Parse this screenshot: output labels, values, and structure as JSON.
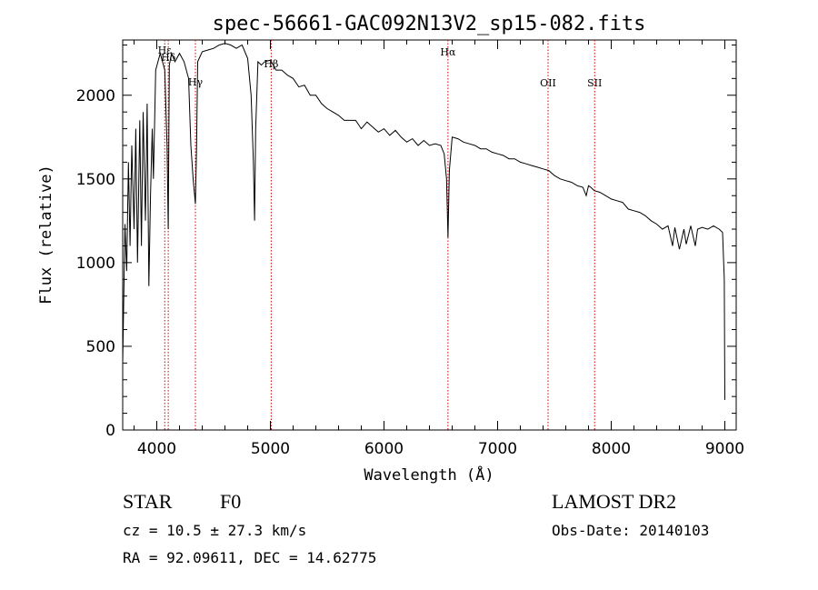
{
  "chart_data": {
    "type": "line",
    "title": "spec-56661-GAC092N13V2_sp15-082.fits",
    "xlabel": "Wavelength (Å)",
    "ylabel": "Flux (relative)",
    "xlim": [
      3700,
      9100
    ],
    "ylim": [
      0,
      2330
    ],
    "xticks": [
      4000,
      5000,
      6000,
      7000,
      8000,
      9000
    ],
    "xtick_labels": [
      "4000",
      "5000",
      "6000",
      "7000",
      "8000",
      "9000"
    ],
    "yticks": [
      0,
      500,
      1000,
      1500,
      2000
    ],
    "ytick_labels": [
      "0",
      "500",
      "1000",
      "1500",
      "2000"
    ],
    "series": [
      {
        "name": "spectrum",
        "x": [
          3700,
          3720,
          3735,
          3750,
          3765,
          3780,
          3800,
          3815,
          3830,
          3850,
          3865,
          3880,
          3900,
          3915,
          3930,
          3945,
          3960,
          3970,
          3990,
          4010,
          4030,
          4050,
          4070,
          4090,
          4101,
          4110,
          4130,
          4160,
          4200,
          4240,
          4280,
          4300,
          4320,
          4340,
          4350,
          4360,
          4400,
          4450,
          4500,
          4550,
          4600,
          4650,
          4700,
          4750,
          4800,
          4830,
          4850,
          4861,
          4870,
          4890,
          4920,
          4950,
          5000,
          5050,
          5100,
          5150,
          5200,
          5250,
          5300,
          5350,
          5400,
          5450,
          5500,
          5550,
          5600,
          5650,
          5700,
          5750,
          5800,
          5850,
          5900,
          5950,
          6000,
          6050,
          6100,
          6150,
          6200,
          6250,
          6300,
          6350,
          6400,
          6450,
          6500,
          6530,
          6550,
          6563,
          6575,
          6600,
          6650,
          6700,
          6750,
          6800,
          6850,
          6900,
          6950,
          7000,
          7050,
          7100,
          7150,
          7200,
          7250,
          7300,
          7350,
          7400,
          7450,
          7500,
          7550,
          7600,
          7650,
          7700,
          7750,
          7780,
          7800,
          7820,
          7850,
          7900,
          7950,
          8000,
          8050,
          8100,
          8150,
          8200,
          8250,
          8300,
          8350,
          8400,
          8450,
          8500,
          8540,
          8560,
          8600,
          8640,
          8660,
          8700,
          8740,
          8760,
          8800,
          8850,
          8900,
          8950,
          8980,
          8995,
          9000
        ],
        "y": [
          400,
          1230,
          950,
          1600,
          1100,
          1700,
          1200,
          1800,
          1000,
          1850,
          1100,
          1900,
          1250,
          1950,
          860,
          1400,
          1800,
          1500,
          2150,
          2200,
          2250,
          2200,
          2150,
          1700,
          1200,
          2180,
          2250,
          2200,
          2250,
          2200,
          2100,
          1700,
          1500,
          1350,
          1700,
          2200,
          2260,
          2270,
          2280,
          2300,
          2310,
          2300,
          2280,
          2300,
          2220,
          2000,
          1600,
          1250,
          1800,
          2200,
          2180,
          2200,
          2210,
          2150,
          2150,
          2120,
          2100,
          2050,
          2060,
          2000,
          2000,
          1950,
          1920,
          1900,
          1880,
          1850,
          1850,
          1850,
          1800,
          1840,
          1810,
          1780,
          1800,
          1760,
          1790,
          1750,
          1720,
          1740,
          1700,
          1730,
          1700,
          1710,
          1700,
          1650,
          1500,
          1150,
          1550,
          1750,
          1740,
          1720,
          1710,
          1700,
          1680,
          1680,
          1660,
          1650,
          1640,
          1620,
          1620,
          1600,
          1590,
          1580,
          1570,
          1560,
          1550,
          1520,
          1500,
          1490,
          1480,
          1460,
          1450,
          1400,
          1460,
          1450,
          1430,
          1420,
          1400,
          1380,
          1370,
          1360,
          1320,
          1310,
          1300,
          1280,
          1250,
          1230,
          1200,
          1220,
          1100,
          1210,
          1080,
          1200,
          1110,
          1220,
          1100,
          1200,
          1210,
          1200,
          1220,
          1200,
          1180,
          900,
          180
        ]
      }
    ],
    "line_markers": [
      {
        "label": "Hδ",
        "wavelength": 4101,
        "style": "dotted"
      },
      {
        "label": "Hε",
        "wavelength": 4070,
        "style": "dotted"
      },
      {
        "label": "Hγ",
        "wavelength": 4340,
        "style": "dotted"
      },
      {
        "label": "Hβ",
        "wavelength": 5007,
        "style": "dotted"
      },
      {
        "label": "Hα",
        "wavelength": 6563,
        "style": "dotted"
      },
      {
        "label": "OII",
        "wavelength": 7444,
        "style": "dotted"
      },
      {
        "label": "SII",
        "wavelength": 7854,
        "style": "dotted"
      }
    ],
    "marker_color": "#cc0000",
    "line_color": "#000000"
  },
  "info": {
    "class_label": "STAR",
    "subclass": "F0",
    "survey": "LAMOST DR2",
    "cz": "cz = 10.5 ± 27.3 km/s",
    "obs_date": "Obs-Date: 20140103",
    "coords": "RA =  92.09611, DEC =  14.62775"
  }
}
